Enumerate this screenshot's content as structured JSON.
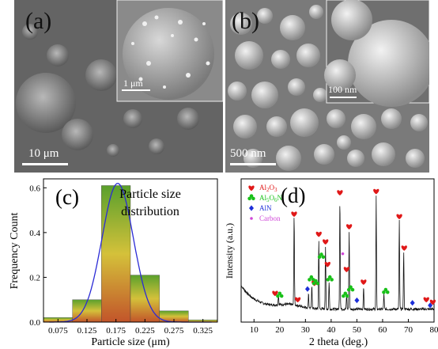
{
  "panel_a": {
    "label": "(a)",
    "scale_main": "10 μm",
    "scale_inset": "1 μm"
  },
  "panel_b": {
    "label": "(b)",
    "scale_main": "500 nm",
    "scale_inset": "100 nm"
  },
  "chart_data": [
    {
      "type": "bar",
      "panel_label": "(c)",
      "title": "Particle size distribution",
      "title_lines": [
        "Particle size",
        "distribution"
      ],
      "xlabel": "Particle size (μm)",
      "ylabel": "Frequency Count",
      "categories": [
        "0.075",
        "0.125",
        "0.175",
        "0.225",
        "0.275",
        "0.325"
      ],
      "x": [
        0.075,
        0.125,
        0.175,
        0.225,
        0.275,
        0.325
      ],
      "values": [
        0.02,
        0.1,
        0.61,
        0.21,
        0.05,
        0.01
      ],
      "yticks": [
        "0.0",
        "0.2",
        "0.4",
        "0.6"
      ],
      "ylim": [
        0,
        0.64
      ],
      "xlim": [
        0.05,
        0.35
      ],
      "fit_curve": {
        "type": "gaussian",
        "mean": 0.178,
        "sigma": 0.027,
        "peak": 0.62
      },
      "colors": {
        "bar_top": "#5aa02c",
        "bar_mid": "#d4c13a",
        "bar_bottom": "#c2542a",
        "fit": "#2b2bd6"
      }
    },
    {
      "type": "line",
      "panel_label": "(d)",
      "xlabel": "2 theta (deg.)",
      "ylabel": "Intensity (a.u.)",
      "xticks": [
        "10",
        "20",
        "30",
        "40",
        "50",
        "60",
        "70",
        "80"
      ],
      "xlim": [
        5,
        80
      ],
      "legend": [
        {
          "name": "Al2O3",
          "color": "#e01818",
          "symbol": "heart"
        },
        {
          "name": "Al5O6N",
          "color": "#18c018",
          "symbol": "club"
        },
        {
          "name": "AlN",
          "color": "#1c2ed8",
          "symbol": "diamond"
        },
        {
          "name": "Carbon",
          "color": "#d048d8",
          "symbol": "dot"
        }
      ],
      "peaks": [
        {
          "x": 19.5,
          "h": 0.08
        },
        {
          "x": 25.6,
          "h": 0.72
        },
        {
          "x": 31.2,
          "h": 0.12
        },
        {
          "x": 32.5,
          "h": 0.18
        },
        {
          "x": 35.2,
          "h": 0.55
        },
        {
          "x": 37.8,
          "h": 0.5
        },
        {
          "x": 39.2,
          "h": 0.22
        },
        {
          "x": 43.4,
          "h": 0.88
        },
        {
          "x": 46.0,
          "h": 0.12
        },
        {
          "x": 47.0,
          "h": 0.62
        },
        {
          "x": 52.6,
          "h": 0.18
        },
        {
          "x": 57.5,
          "h": 0.9
        },
        {
          "x": 60.5,
          "h": 0.12
        },
        {
          "x": 66.5,
          "h": 0.7
        },
        {
          "x": 68.2,
          "h": 0.45
        }
      ],
      "markers": [
        {
          "x": 18.2,
          "sym": "heart",
          "y": 0.17
        },
        {
          "x": 20.0,
          "sym": "club",
          "y": 0.15
        },
        {
          "x": 25.6,
          "sym": "heart",
          "y": 0.8
        },
        {
          "x": 27.0,
          "sym": "heart",
          "y": 0.12
        },
        {
          "x": 30.8,
          "sym": "diamond",
          "y": 0.2
        },
        {
          "x": 32.3,
          "sym": "club",
          "y": 0.28
        },
        {
          "x": 33.5,
          "sym": "heart",
          "y": 0.25
        },
        {
          "x": 34.0,
          "sym": "club",
          "y": 0.25
        },
        {
          "x": 35.2,
          "sym": "heart",
          "y": 0.64
        },
        {
          "x": 36.2,
          "sym": "club",
          "y": 0.46
        },
        {
          "x": 37.8,
          "sym": "heart",
          "y": 0.58
        },
        {
          "x": 38.6,
          "sym": "heart",
          "y": 0.4
        },
        {
          "x": 39.5,
          "sym": "club",
          "y": 0.28
        },
        {
          "x": 43.4,
          "sym": "heart",
          "y": 0.97
        },
        {
          "x": 44.5,
          "sym": "dot",
          "y": 0.48
        },
        {
          "x": 45.5,
          "sym": "club",
          "y": 0.15
        },
        {
          "x": 46.0,
          "sym": "heart",
          "y": 0.36
        },
        {
          "x": 47.0,
          "sym": "heart",
          "y": 0.7
        },
        {
          "x": 47.6,
          "sym": "club",
          "y": 0.2
        },
        {
          "x": 50.0,
          "sym": "diamond",
          "y": 0.11
        },
        {
          "x": 52.6,
          "sym": "heart",
          "y": 0.26
        },
        {
          "x": 57.5,
          "sym": "heart",
          "y": 0.98
        },
        {
          "x": 61.2,
          "sym": "club",
          "y": 0.18
        },
        {
          "x": 66.5,
          "sym": "heart",
          "y": 0.78
        },
        {
          "x": 68.4,
          "sym": "heart",
          "y": 0.53
        },
        {
          "x": 71.6,
          "sym": "diamond",
          "y": 0.09
        },
        {
          "x": 77.0,
          "sym": "heart",
          "y": 0.12
        },
        {
          "x": 78.5,
          "sym": "diamond",
          "y": 0.07
        },
        {
          "x": 79.5,
          "sym": "heart",
          "y": 0.1
        }
      ]
    }
  ]
}
